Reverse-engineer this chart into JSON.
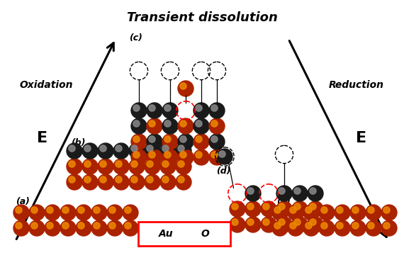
{
  "title": "Transient dissolution",
  "au_color": "#AA2200",
  "au_highlight": "#EE8800",
  "o_color": "#1a1a1a",
  "o_highlight": "#888888",
  "bg_color": "#ffffff",
  "label_oxidation": "Oxidation",
  "label_reduction": "Reduction",
  "label_E_left": "E",
  "label_E_right": "E",
  "legend_Au": "Au",
  "legend_O": "O"
}
